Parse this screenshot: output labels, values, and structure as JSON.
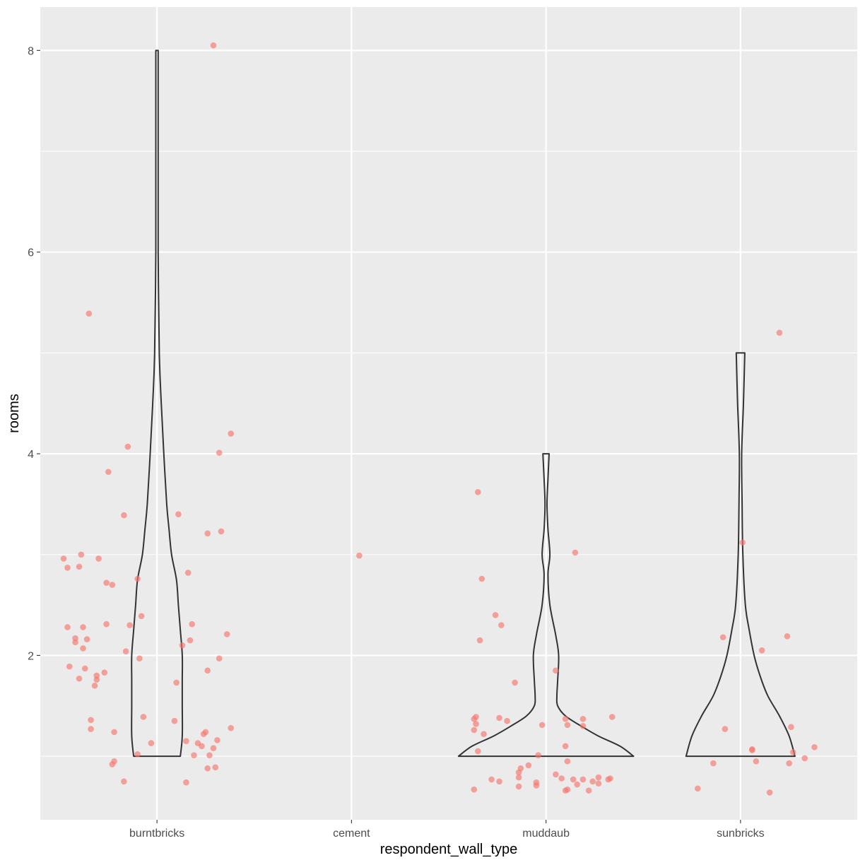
{
  "chart_data": {
    "type": "violin",
    "title": "",
    "xlabel": "respondent_wall_type",
    "ylabel": "rooms",
    "categories": [
      "burntbricks",
      "cement",
      "muddaub",
      "sunbricks"
    ],
    "ylim": [
      0.37,
      8.43
    ],
    "yticks": [
      2,
      4,
      6,
      8
    ],
    "grid": true,
    "legend": "none",
    "colors": {
      "panel_background": "#ebebeb",
      "grid_line": "#ffffff",
      "point": "#f8766d",
      "violin_outline": "#333333"
    },
    "violins": [
      {
        "category": "burntbricks",
        "profile": [
          {
            "y": 1.0,
            "hw": 0.12
          },
          {
            "y": 1.2,
            "hw": 0.13
          },
          {
            "y": 1.5,
            "hw": 0.13
          },
          {
            "y": 1.75,
            "hw": 0.13
          },
          {
            "y": 2.0,
            "hw": 0.13
          },
          {
            "y": 2.25,
            "hw": 0.12
          },
          {
            "y": 2.5,
            "hw": 0.11
          },
          {
            "y": 2.75,
            "hw": 0.1
          },
          {
            "y": 3.0,
            "hw": 0.075
          },
          {
            "y": 3.25,
            "hw": 0.062
          },
          {
            "y": 3.5,
            "hw": 0.05
          },
          {
            "y": 4.0,
            "hw": 0.035
          },
          {
            "y": 4.5,
            "hw": 0.022
          },
          {
            "y": 5.0,
            "hw": 0.012
          },
          {
            "y": 6.0,
            "hw": 0.006
          },
          {
            "y": 7.0,
            "hw": 0.006
          },
          {
            "y": 8.0,
            "hw": 0.006
          }
        ]
      },
      {
        "category": "muddaub",
        "profile": [
          {
            "y": 1.0,
            "hw": 0.45
          },
          {
            "y": 1.1,
            "hw": 0.38
          },
          {
            "y": 1.2,
            "hw": 0.27
          },
          {
            "y": 1.3,
            "hw": 0.18
          },
          {
            "y": 1.4,
            "hw": 0.1
          },
          {
            "y": 1.5,
            "hw": 0.06
          },
          {
            "y": 1.6,
            "hw": 0.056
          },
          {
            "y": 1.75,
            "hw": 0.06
          },
          {
            "y": 2.0,
            "hw": 0.065
          },
          {
            "y": 2.2,
            "hw": 0.05
          },
          {
            "y": 2.5,
            "hw": 0.02
          },
          {
            "y": 2.8,
            "hw": 0.01
          },
          {
            "y": 3.0,
            "hw": 0.02
          },
          {
            "y": 3.25,
            "hw": 0.01
          },
          {
            "y": 3.5,
            "hw": 0.005
          },
          {
            "y": 3.75,
            "hw": 0.01
          },
          {
            "y": 4.0,
            "hw": 0.016
          }
        ]
      },
      {
        "category": "sunbricks",
        "profile": [
          {
            "y": 1.0,
            "hw": 0.28
          },
          {
            "y": 1.2,
            "hw": 0.25
          },
          {
            "y": 1.4,
            "hw": 0.2
          },
          {
            "y": 1.6,
            "hw": 0.14
          },
          {
            "y": 1.8,
            "hw": 0.1
          },
          {
            "y": 2.0,
            "hw": 0.07
          },
          {
            "y": 2.25,
            "hw": 0.045
          },
          {
            "y": 2.5,
            "hw": 0.025
          },
          {
            "y": 3.0,
            "hw": 0.012
          },
          {
            "y": 3.5,
            "hw": 0.008
          },
          {
            "y": 4.0,
            "hw": 0.006
          },
          {
            "y": 4.5,
            "hw": 0.015
          },
          {
            "y": 5.0,
            "hw": 0.022
          }
        ]
      }
    ],
    "points": [
      {
        "x": 0.52,
        "y": 2.96
      },
      {
        "x": 0.54,
        "y": 2.87
      },
      {
        "x": 0.54,
        "y": 2.28
      },
      {
        "x": 0.55,
        "y": 1.89
      },
      {
        "x": 0.58,
        "y": 2.17
      },
      {
        "x": 0.58,
        "y": 2.13
      },
      {
        "x": 0.6,
        "y": 2.88
      },
      {
        "x": 0.61,
        "y": 3.0
      },
      {
        "x": 0.6,
        "y": 1.77
      },
      {
        "x": 0.62,
        "y": 2.28
      },
      {
        "x": 0.62,
        "y": 2.07
      },
      {
        "x": 0.63,
        "y": 1.87
      },
      {
        "x": 0.64,
        "y": 2.16
      },
      {
        "x": 0.65,
        "y": 5.39
      },
      {
        "x": 0.66,
        "y": 1.36
      },
      {
        "x": 0.66,
        "y": 1.27
      },
      {
        "x": 0.68,
        "y": 1.7
      },
      {
        "x": 0.69,
        "y": 1.76
      },
      {
        "x": 0.69,
        "y": 1.8
      },
      {
        "x": 0.7,
        "y": 2.96
      },
      {
        "x": 0.73,
        "y": 1.83
      },
      {
        "x": 0.74,
        "y": 2.31
      },
      {
        "x": 0.74,
        "y": 2.72
      },
      {
        "x": 0.75,
        "y": 3.82
      },
      {
        "x": 0.77,
        "y": 2.7
      },
      {
        "x": 0.78,
        "y": 1.24
      },
      {
        "x": 0.77,
        "y": 0.92
      },
      {
        "x": 0.78,
        "y": 0.95
      },
      {
        "x": 0.83,
        "y": 3.39
      },
      {
        "x": 0.84,
        "y": 2.04
      },
      {
        "x": 0.83,
        "y": 0.75
      },
      {
        "x": 0.85,
        "y": 4.07
      },
      {
        "x": 0.86,
        "y": 2.3
      },
      {
        "x": 0.9,
        "y": 2.76
      },
      {
        "x": 0.91,
        "y": 1.97
      },
      {
        "x": 0.92,
        "y": 2.39
      },
      {
        "x": 0.93,
        "y": 1.39
      },
      {
        "x": 0.9,
        "y": 1.02
      },
      {
        "x": 0.97,
        "y": 1.13
      },
      {
        "x": 1.09,
        "y": 1.35
      },
      {
        "x": 1.1,
        "y": 1.73
      },
      {
        "x": 1.11,
        "y": 3.4
      },
      {
        "x": 1.13,
        "y": 2.1
      },
      {
        "x": 1.15,
        "y": 1.15
      },
      {
        "x": 1.16,
        "y": 2.82
      },
      {
        "x": 1.15,
        "y": 0.74
      },
      {
        "x": 1.17,
        "y": 2.15
      },
      {
        "x": 1.18,
        "y": 2.31
      },
      {
        "x": 1.19,
        "y": 1.01
      },
      {
        "x": 1.21,
        "y": 1.13
      },
      {
        "x": 1.23,
        "y": 1.1
      },
      {
        "x": 1.24,
        "y": 1.22
      },
      {
        "x": 1.25,
        "y": 1.24
      },
      {
        "x": 1.26,
        "y": 1.85
      },
      {
        "x": 1.26,
        "y": 3.21
      },
      {
        "x": 1.26,
        "y": 0.88
      },
      {
        "x": 1.27,
        "y": 1.01
      },
      {
        "x": 1.29,
        "y": 1.08
      },
      {
        "x": 1.29,
        "y": 8.05
      },
      {
        "x": 1.3,
        "y": 0.89
      },
      {
        "x": 1.31,
        "y": 1.16
      },
      {
        "x": 1.32,
        "y": 4.01
      },
      {
        "x": 1.32,
        "y": 1.97
      },
      {
        "x": 1.33,
        "y": 3.23
      },
      {
        "x": 1.36,
        "y": 2.21
      },
      {
        "x": 1.38,
        "y": 4.2
      },
      {
        "x": 1.38,
        "y": 1.28
      },
      {
        "x": 2.04,
        "y": 2.99
      },
      {
        "x": 2.63,
        "y": 0.67
      },
      {
        "x": 2.63,
        "y": 1.26
      },
      {
        "x": 2.63,
        "y": 1.37
      },
      {
        "x": 2.64,
        "y": 1.32
      },
      {
        "x": 2.64,
        "y": 1.39
      },
      {
        "x": 2.65,
        "y": 1.05
      },
      {
        "x": 2.65,
        "y": 3.62
      },
      {
        "x": 2.66,
        "y": 2.15
      },
      {
        "x": 2.67,
        "y": 2.76
      },
      {
        "x": 2.68,
        "y": 1.22
      },
      {
        "x": 2.72,
        "y": 0.77
      },
      {
        "x": 2.74,
        "y": 2.4
      },
      {
        "x": 2.76,
        "y": 1.38
      },
      {
        "x": 2.76,
        "y": 0.75
      },
      {
        "x": 2.77,
        "y": 2.3
      },
      {
        "x": 2.8,
        "y": 1.35
      },
      {
        "x": 2.84,
        "y": 1.73
      },
      {
        "x": 2.86,
        "y": 0.79
      },
      {
        "x": 2.86,
        "y": 0.7
      },
      {
        "x": 2.86,
        "y": 0.84
      },
      {
        "x": 2.87,
        "y": 0.88
      },
      {
        "x": 2.91,
        "y": 0.91
      },
      {
        "x": 2.95,
        "y": 0.71
      },
      {
        "x": 2.95,
        "y": 0.74
      },
      {
        "x": 2.96,
        "y": 1.01
      },
      {
        "x": 2.98,
        "y": 1.31
      },
      {
        "x": 3.05,
        "y": 1.85
      },
      {
        "x": 3.05,
        "y": 0.82
      },
      {
        "x": 3.08,
        "y": 0.78
      },
      {
        "x": 3.1,
        "y": 0.66
      },
      {
        "x": 3.1,
        "y": 1.37
      },
      {
        "x": 3.11,
        "y": 1.31
      },
      {
        "x": 3.1,
        "y": 1.1
      },
      {
        "x": 3.11,
        "y": 0.95
      },
      {
        "x": 3.11,
        "y": 0.67
      },
      {
        "x": 3.14,
        "y": 0.77
      },
      {
        "x": 3.15,
        "y": 3.02
      },
      {
        "x": 3.16,
        "y": 0.72
      },
      {
        "x": 3.19,
        "y": 1.37
      },
      {
        "x": 3.19,
        "y": 0.77
      },
      {
        "x": 3.19,
        "y": 1.3
      },
      {
        "x": 3.22,
        "y": 0.66
      },
      {
        "x": 3.24,
        "y": 0.75
      },
      {
        "x": 3.27,
        "y": 0.79
      },
      {
        "x": 3.27,
        "y": 0.73
      },
      {
        "x": 3.32,
        "y": 0.77
      },
      {
        "x": 3.33,
        "y": 0.78
      },
      {
        "x": 3.34,
        "y": 1.39
      },
      {
        "x": 3.78,
        "y": 0.68
      },
      {
        "x": 3.86,
        "y": 0.93
      },
      {
        "x": 3.91,
        "y": 2.18
      },
      {
        "x": 3.92,
        "y": 1.27
      },
      {
        "x": 4.01,
        "y": 3.12
      },
      {
        "x": 4.06,
        "y": 1.06
      },
      {
        "x": 4.06,
        "y": 1.07
      },
      {
        "x": 4.08,
        "y": 0.95
      },
      {
        "x": 4.11,
        "y": 2.05
      },
      {
        "x": 4.15,
        "y": 0.64
      },
      {
        "x": 4.2,
        "y": 5.2
      },
      {
        "x": 4.24,
        "y": 2.19
      },
      {
        "x": 4.25,
        "y": 0.93
      },
      {
        "x": 4.26,
        "y": 1.29
      },
      {
        "x": 4.27,
        "y": 1.04
      },
      {
        "x": 4.33,
        "y": 0.98
      },
      {
        "x": 4.38,
        "y": 1.09
      }
    ]
  }
}
